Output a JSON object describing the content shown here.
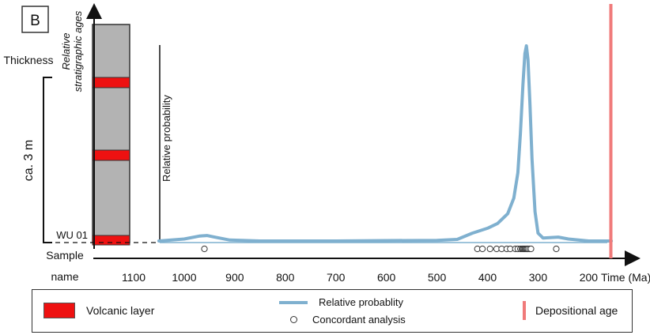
{
  "panel_label": "B",
  "column": {
    "axis_title_line1": "Relative",
    "axis_title_line2": "stratigraphic ages",
    "thickness_label": "Thickness",
    "scale_label": "ca. 3 m",
    "sample_id": "WU 01",
    "sample_label_line1": "Sample",
    "sample_label_line2": "name",
    "volcanic_layers": 3
  },
  "colors": {
    "volcanic": "#ee1111",
    "column_fill": "#b3b3b3",
    "probability": "#7fb0cf",
    "depositional": "#f07a7a"
  },
  "chart_data": {
    "type": "line",
    "xlabel": "Time (Ma)",
    "ylabel": "Relative probability",
    "x_reversed": true,
    "xlim": [
      1160,
      140
    ],
    "x_ticks": [
      1100,
      1000,
      900,
      800,
      700,
      600,
      500,
      400,
      300,
      200
    ],
    "series": [
      {
        "points": [
          [
            1050,
            0.0
          ],
          [
            1000,
            0.01
          ],
          [
            970,
            0.025
          ],
          [
            955,
            0.028
          ],
          [
            940,
            0.02
          ],
          [
            910,
            0.005
          ],
          [
            850,
            0.0
          ],
          [
            700,
            0.0
          ],
          [
            600,
            0.002
          ],
          [
            500,
            0.003
          ],
          [
            460,
            0.008
          ],
          [
            430,
            0.04
          ],
          [
            400,
            0.065
          ],
          [
            380,
            0.09
          ],
          [
            360,
            0.14
          ],
          [
            348,
            0.22
          ],
          [
            340,
            0.35
          ],
          [
            335,
            0.55
          ],
          [
            330,
            0.8
          ],
          [
            326,
            0.96
          ],
          [
            323,
            1.0
          ],
          [
            320,
            0.93
          ],
          [
            316,
            0.7
          ],
          [
            312,
            0.42
          ],
          [
            306,
            0.15
          ],
          [
            300,
            0.04
          ],
          [
            290,
            0.015
          ],
          [
            260,
            0.02
          ],
          [
            240,
            0.01
          ],
          [
            200,
            0.0
          ],
          [
            155,
            0.0
          ]
        ]
      }
    ],
    "concordant_analyses": [
      960,
      420,
      410,
      395,
      382,
      372,
      362,
      355,
      345,
      340,
      335,
      332,
      330,
      328,
      326,
      324,
      322,
      320,
      317,
      314,
      264
    ],
    "depositional_age": 156
  },
  "legend": {
    "volcanic": "Volcanic layer",
    "probability": "Relative probablity",
    "concordant": "Concordant analysis",
    "depositional": "Depositional age"
  }
}
